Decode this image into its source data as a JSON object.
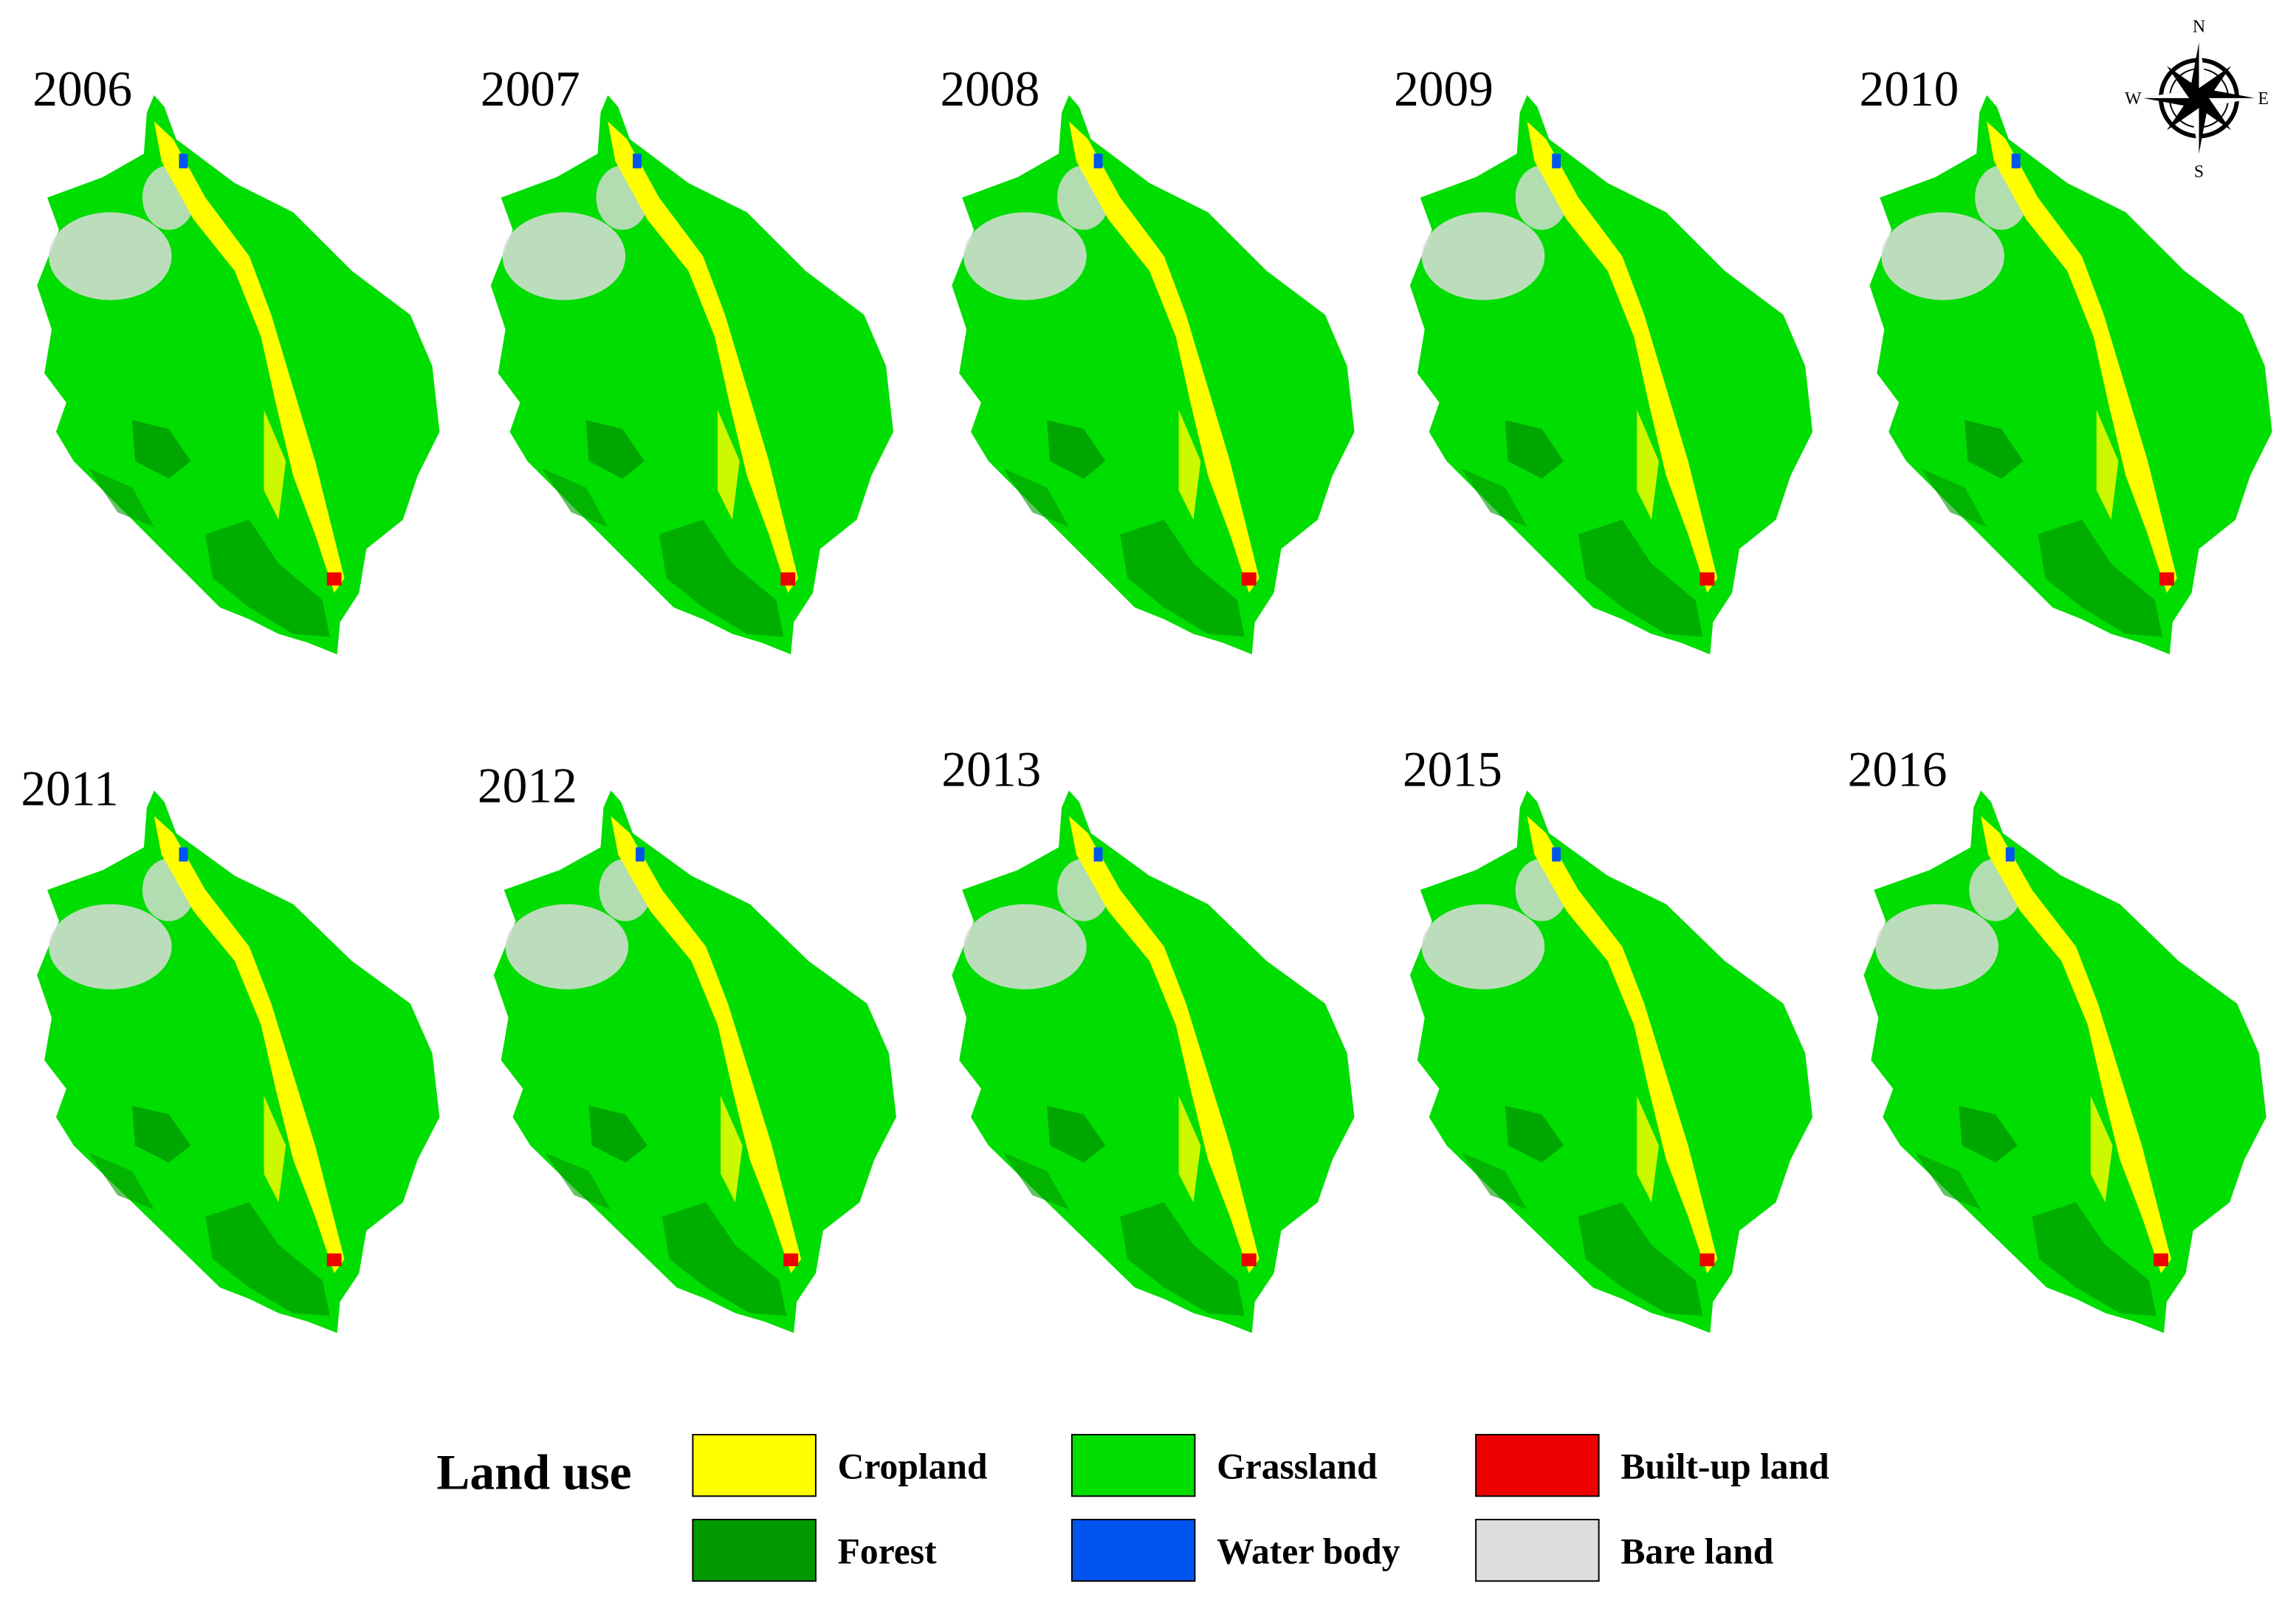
{
  "panels": [
    {
      "label": "2006"
    },
    {
      "label": "2007"
    },
    {
      "label": "2008"
    },
    {
      "label": "2009"
    },
    {
      "label": "2010"
    },
    {
      "label": "2011"
    },
    {
      "label": "2012"
    },
    {
      "label": "2013"
    },
    {
      "label": "2015"
    },
    {
      "label": "2016"
    }
  ],
  "compass": {
    "n": "N",
    "s": "S",
    "e": "E",
    "w": "W"
  },
  "legend": {
    "title": "Land use",
    "items": [
      {
        "label": "Cropland",
        "color": "#ffff00"
      },
      {
        "label": "Grassland",
        "color": "#00dd00"
      },
      {
        "label": "Built-up land",
        "color": "#ee0000"
      },
      {
        "label": "Forest",
        "color": "#009a00"
      },
      {
        "label": "Water body",
        "color": "#0055ee"
      },
      {
        "label": "Bare land",
        "color": "#dddddd"
      }
    ]
  }
}
